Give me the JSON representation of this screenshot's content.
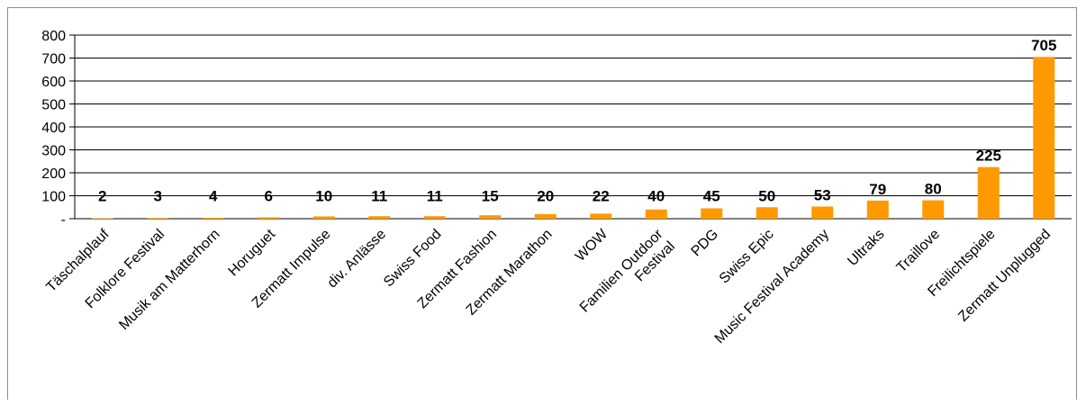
{
  "chart_data": {
    "type": "bar",
    "title": "",
    "xlabel": "",
    "ylabel": "",
    "ylim": [
      0,
      800
    ],
    "yticks": [
      0,
      100,
      200,
      300,
      400,
      500,
      600,
      700,
      800
    ],
    "ytick_labels": [
      "-",
      "100",
      "200",
      "300",
      "400",
      "500",
      "600",
      "700",
      "800"
    ],
    "grid": "horizontal",
    "bar_color": "#FF9900",
    "categories": [
      "Täschalplauf",
      "Folklore Festival",
      "Musik am Matterhorn",
      "Horuguet",
      "Zermatt Impulse",
      "div. Anlässe",
      "Swiss Food",
      "Zermatt Fashion",
      "Zermatt Marathon",
      "WOW",
      "Familien Outdoor Festival",
      "PDG",
      "Swiss Epic",
      "Music Festival Academy",
      "Ultraks",
      "Traillove",
      "Freilichtspiele",
      "Zermatt Unplugged"
    ],
    "category_lines": [
      [
        "Täschalplauf"
      ],
      [
        "Folklore Festival"
      ],
      [
        "Musik am Matterhorn"
      ],
      [
        "Horuguet"
      ],
      [
        "Zermatt Impulse"
      ],
      [
        "div. Anlässe"
      ],
      [
        "Swiss Food"
      ],
      [
        "Zermatt Fashion"
      ],
      [
        "Zermatt Marathon"
      ],
      [
        "WOW"
      ],
      [
        "Familien Outdoor",
        "Festival"
      ],
      [
        "PDG"
      ],
      [
        "Swiss Epic"
      ],
      [
        "Music Festival Academy"
      ],
      [
        "Ultraks"
      ],
      [
        "Traillove"
      ],
      [
        "Freilichtspiele"
      ],
      [
        "Zermatt Unplugged"
      ]
    ],
    "values": [
      2,
      3,
      4,
      6,
      10,
      11,
      11,
      15,
      20,
      22,
      40,
      45,
      50,
      53,
      79,
      80,
      225,
      705
    ],
    "data_labels": [
      "2",
      "3",
      "4",
      "6",
      "10",
      "11",
      "11",
      "15",
      "20",
      "22",
      "40",
      "45",
      "50",
      "53",
      "79",
      "80",
      "225",
      "705"
    ]
  }
}
